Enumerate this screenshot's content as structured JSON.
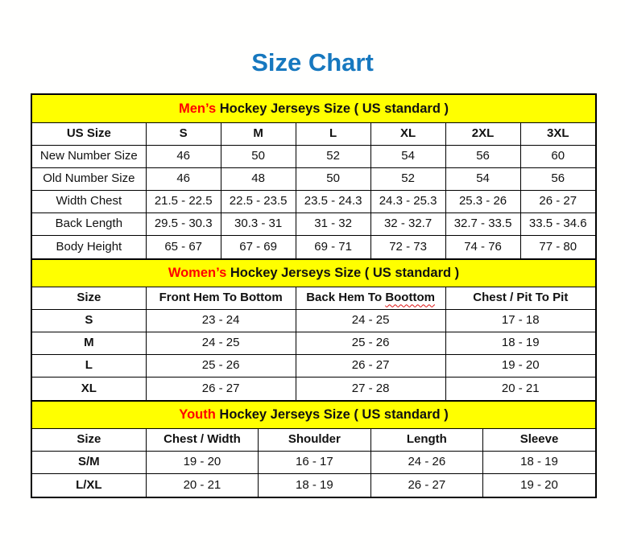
{
  "title": "Size Chart",
  "colors": {
    "title_color": "#1778bf",
    "section_bg": "#ffff00",
    "accent_text": "#ff0000",
    "border_color": "#000000"
  },
  "sections": [
    {
      "id": "mens",
      "heading": {
        "accent": "Men’s",
        "rest": " Hockey Jerseys Size ( US standard )"
      },
      "columns": [
        "US Size",
        "S",
        "M",
        "L",
        "XL",
        "2XL",
        "3XL"
      ],
      "rows": [
        [
          "New Number Size",
          "46",
          "50",
          "52",
          "54",
          "56",
          "60"
        ],
        [
          "Old Number Size",
          "46",
          "48",
          "50",
          "52",
          "54",
          "56"
        ],
        [
          "Width Chest",
          "21.5 - 22.5",
          "22.5 - 23.5",
          "23.5 - 24.3",
          "24.3 - 25.3",
          "25.3 - 26",
          "26 - 27"
        ],
        [
          "Back Length",
          "29.5 - 30.3",
          "30.3 - 31",
          "31 - 32",
          "32 - 32.7",
          "32.7 - 33.5",
          "33.5 - 34.6"
        ],
        [
          "Body Height",
          "65 - 67",
          "67 - 69",
          "69 - 71",
          "72 - 73",
          "74 - 76",
          "77 - 80"
        ]
      ]
    },
    {
      "id": "womens",
      "heading": {
        "accent": "Women’s",
        "rest": " Hockey Jerseys Size ( US standard )"
      },
      "columns": [
        "Size",
        "Front Hem To Bottom",
        {
          "label": "Back Hem To ",
          "misspelled": "Boottom"
        },
        "Chest / Pit To Pit"
      ],
      "rows": [
        [
          "S",
          "23 - 24",
          "24 - 25",
          "17 - 18"
        ],
        [
          "M",
          "24 - 25",
          "25 - 26",
          "18 - 19"
        ],
        [
          "L",
          "25 - 26",
          "26 - 27",
          "19 - 20"
        ],
        [
          "XL",
          "26 - 27",
          "27 - 28",
          "20 - 21"
        ]
      ]
    },
    {
      "id": "youth",
      "heading": {
        "accent": "Youth",
        "rest": " Hockey Jerseys Size ( US standard )"
      },
      "columns": [
        "Size",
        "Chest / Width",
        "Shoulder",
        "Length",
        "Sleeve"
      ],
      "rows": [
        [
          "S/M",
          "19 - 20",
          "16 - 17",
          "24 - 26",
          "18 - 19"
        ],
        [
          "L/XL",
          "20 - 21",
          "18 - 19",
          "26 - 27",
          "19 - 20"
        ]
      ]
    }
  ]
}
